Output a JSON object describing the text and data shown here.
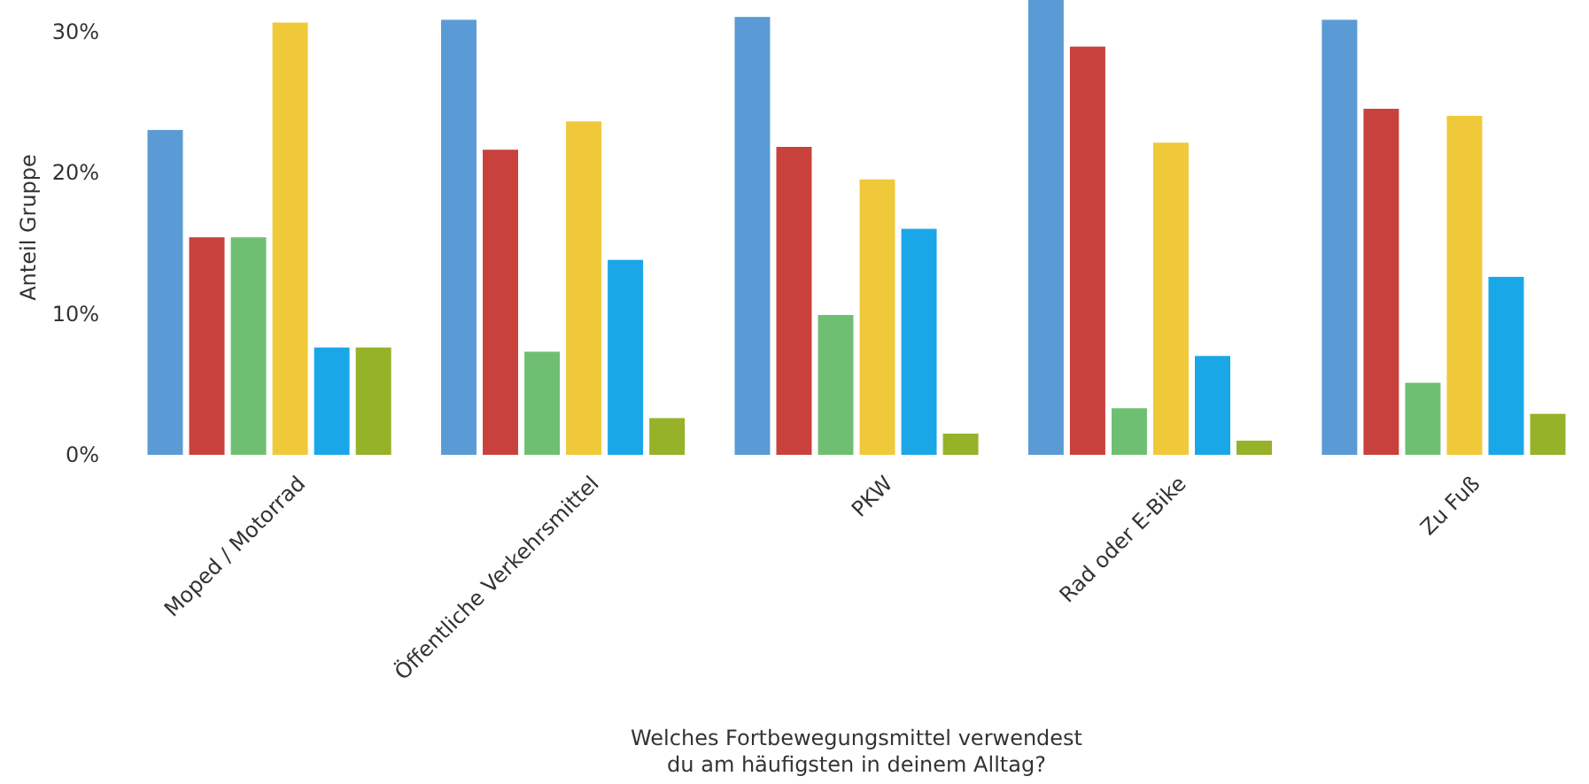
{
  "chart_data": {
    "type": "bar",
    "xlabel": "Welches Fortbewegungsmittel verwendest du am häufigsten in deinem Alltag?",
    "ylabel": "Anteil Gruppe",
    "categories": [
      "Moped / Motorrad",
      "Öffentliche Verkehrsmittel",
      "PKW",
      "Rad oder E-Bike",
      "Zu Fuß"
    ],
    "series": [
      {
        "color": "#5b9bd5",
        "values": [
          23.0,
          30.8,
          31.0,
          32.2,
          30.8
        ]
      },
      {
        "color": "#c9413d",
        "values": [
          15.4,
          21.6,
          21.8,
          28.9,
          24.5
        ]
      },
      {
        "color": "#6fbf73",
        "values": [
          15.4,
          7.3,
          9.9,
          3.3,
          5.1
        ]
      },
      {
        "color": "#f0c93a",
        "values": [
          30.6,
          23.6,
          19.5,
          22.1,
          24.0
        ]
      },
      {
        "color": "#1aa7e8",
        "values": [
          7.6,
          13.8,
          16.0,
          7.0,
          12.6
        ]
      },
      {
        "color": "#95b229",
        "values": [
          7.6,
          2.6,
          1.5,
          1.0,
          2.9
        ]
      }
    ],
    "ylim": [
      0,
      32.2
    ],
    "yticks": [
      {
        "value": 0,
        "label": "0%"
      },
      {
        "value": 10,
        "label": "10%"
      },
      {
        "value": 20,
        "label": "20%"
      },
      {
        "value": 30,
        "label": "30%"
      }
    ],
    "grid": false
  }
}
